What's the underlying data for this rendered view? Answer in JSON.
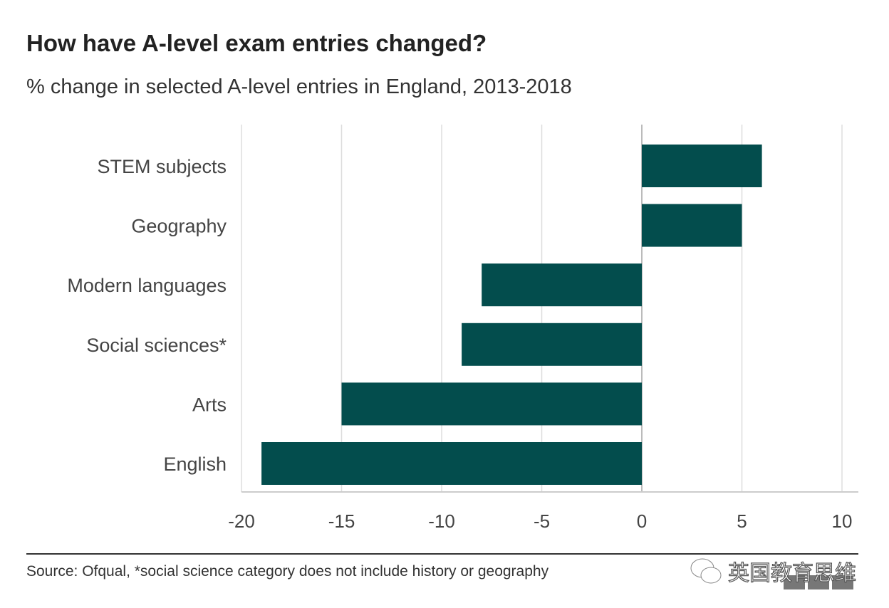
{
  "chart_data": {
    "type": "bar",
    "orientation": "horizontal",
    "title": "How have A-level exam entries changed?",
    "subtitle": "% change in selected A-level entries in England, 2013-2018",
    "categories": [
      "STEM subjects",
      "Geography",
      "Modern languages",
      "Social sciences*",
      "Arts",
      "English"
    ],
    "values": [
      6,
      5,
      -8,
      -9,
      -15,
      -19
    ],
    "xlim": [
      -20,
      10
    ],
    "xticks": [
      -20,
      -15,
      -10,
      -5,
      0,
      5,
      10
    ],
    "xtick_labels": [
      "-20",
      "-15",
      "-10",
      "-5",
      "0",
      "5",
      "10"
    ],
    "grid": true,
    "bar_color": "#034d4d",
    "source": "Source: Ofqual, *social science category does not include history or geography"
  },
  "watermark": "英国教育思维",
  "logo": "BBC"
}
